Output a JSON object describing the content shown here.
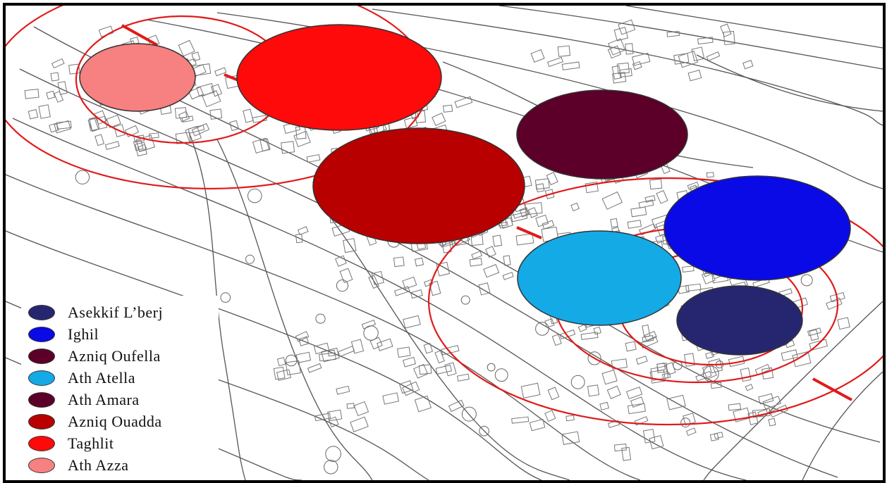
{
  "legend": [
    {
      "label": "Asekkif L’berj",
      "color": "#262670"
    },
    {
      "label": "Ighil",
      "color": "#0a0ae6"
    },
    {
      "label": "Azniq Oufella",
      "color": "#5c0029"
    },
    {
      "label": "Ath Atella",
      "color": "#14aae6"
    },
    {
      "label": "Ath Amara",
      "color": "#5c0029"
    },
    {
      "label": "Azniq Ouadda",
      "color": "#b80000"
    },
    {
      "label": "Taghlit",
      "color": "#ff0a0a"
    },
    {
      "label": "Ath Azza",
      "color": "#f78080"
    }
  ],
  "colors": {
    "ring": "#e01a1a",
    "line": "#555555",
    "building": "#777777"
  }
}
